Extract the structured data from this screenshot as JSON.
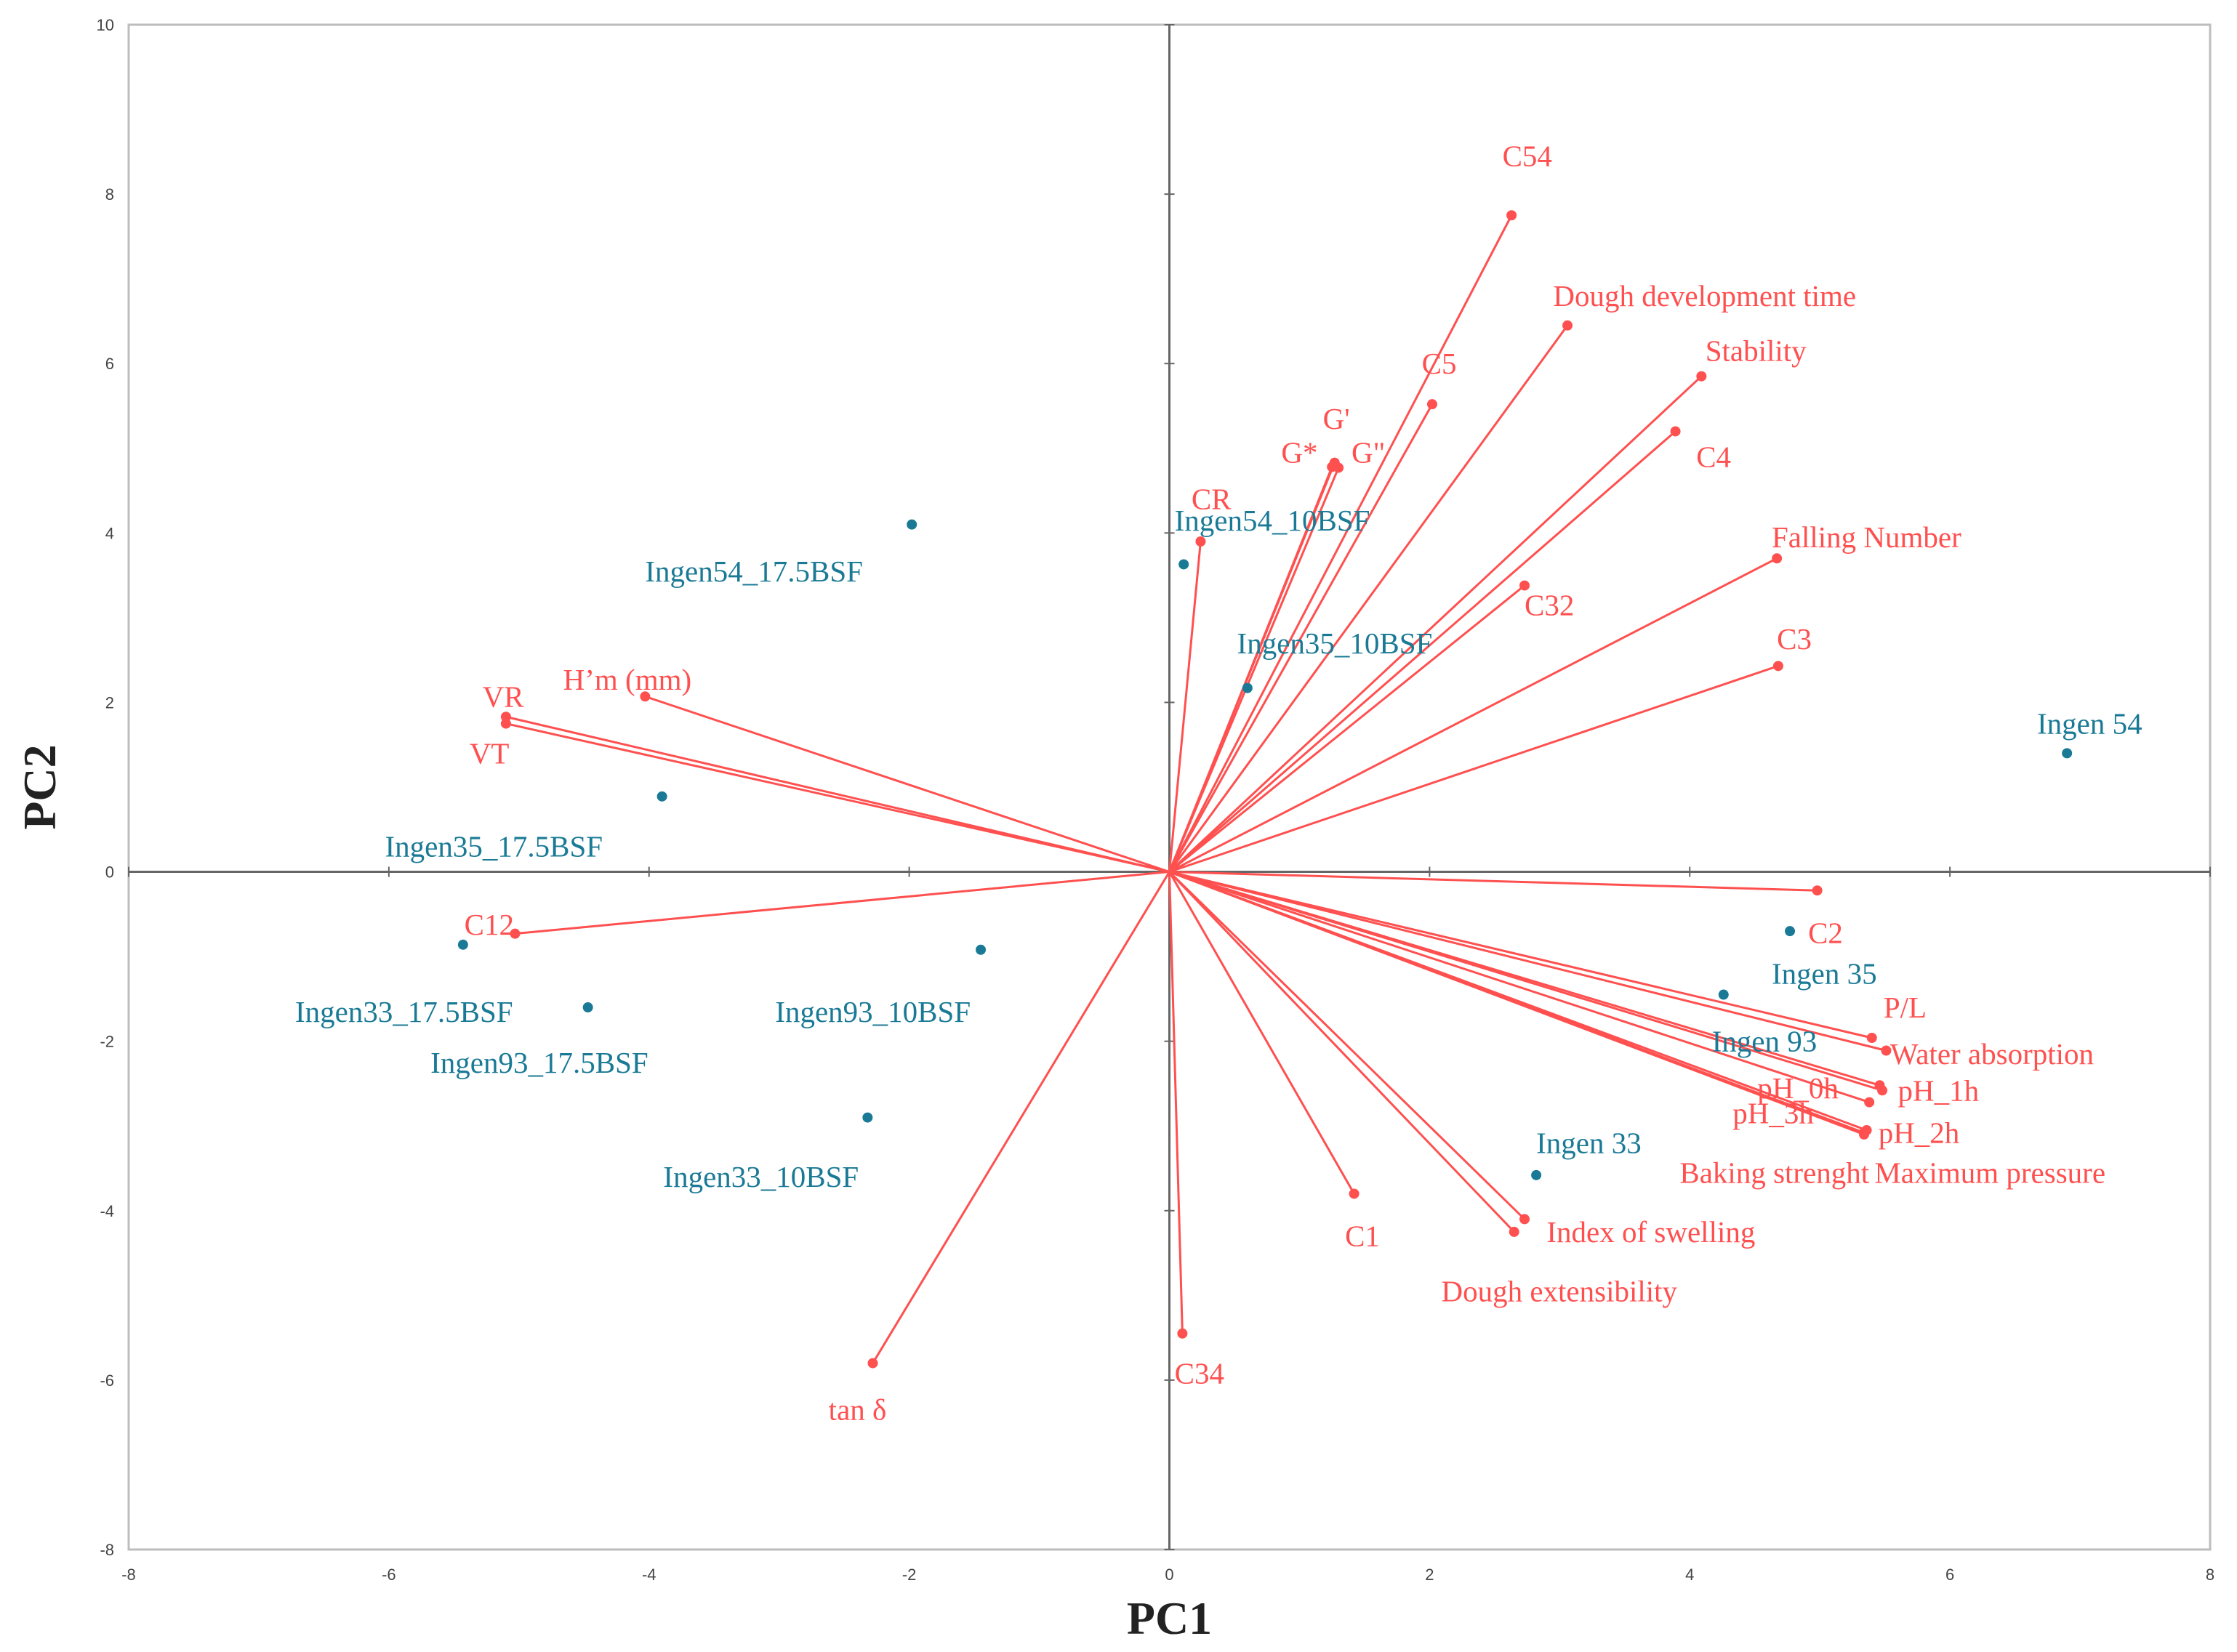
{
  "chart_data": {
    "type": "scatter",
    "subtype": "pca-biplot",
    "title": "",
    "xlabel": "PC1",
    "ylabel": "PC2",
    "xlim": [
      -8,
      8
    ],
    "ylim": [
      -8,
      10
    ],
    "xticks": [
      -8,
      -6,
      -4,
      -2,
      0,
      2,
      4,
      6,
      8
    ],
    "yticks": [
      -8,
      -6,
      -4,
      -2,
      0,
      2,
      4,
      6,
      8,
      10
    ],
    "grid": false,
    "colors": {
      "variables": "#ff5050",
      "observations": "#1a7a96",
      "frame": "#bdbdbd",
      "zero_lines": "#666666"
    },
    "variables": [
      {
        "label": "C54",
        "x": 2.63,
        "y": 7.75,
        "anchor": "start",
        "dx": 2.56,
        "dy": 8.45
      },
      {
        "label": "Dough development time",
        "x": 3.06,
        "y": 6.45,
        "anchor": "start",
        "dx": 2.95,
        "dy": 6.8
      },
      {
        "label": "Stability",
        "x": 4.09,
        "y": 5.85,
        "anchor": "start",
        "dx": 4.12,
        "dy": 6.15
      },
      {
        "label": "C5",
        "x": 2.02,
        "y": 5.52,
        "anchor": "start",
        "dx": 1.94,
        "dy": 6.0
      },
      {
        "label": "G'",
        "x": 1.27,
        "y": 4.83,
        "anchor": "start",
        "dx": 1.18,
        "dy": 5.35
      },
      {
        "label": "G*",
        "x": 1.25,
        "y": 4.78,
        "anchor": "start",
        "dx": 0.86,
        "dy": 4.95
      },
      {
        "label": "G\"",
        "x": 1.3,
        "y": 4.77,
        "anchor": "start",
        "dx": 1.4,
        "dy": 4.95
      },
      {
        "label": "C4",
        "x": 3.89,
        "y": 5.2,
        "anchor": "start",
        "dx": 4.05,
        "dy": 4.9
      },
      {
        "label": "CR",
        "x": 0.24,
        "y": 3.9,
        "anchor": "start",
        "dx": 0.17,
        "dy": 4.4
      },
      {
        "label": "Falling Number",
        "x": 4.67,
        "y": 3.7,
        "anchor": "start",
        "dx": 4.63,
        "dy": 3.95
      },
      {
        "label": "C32",
        "x": 2.73,
        "y": 3.38,
        "anchor": "start",
        "dx": 2.73,
        "dy": 3.15
      },
      {
        "label": "C3",
        "x": 4.68,
        "y": 2.43,
        "anchor": "start",
        "dx": 4.67,
        "dy": 2.75
      },
      {
        "label": "H’m (mm)",
        "x": -4.03,
        "y": 2.07,
        "anchor": "start",
        "dx": -4.66,
        "dy": 2.27
      },
      {
        "label": "VR",
        "x": -5.1,
        "y": 1.83,
        "anchor": "start",
        "dx": -5.28,
        "dy": 2.07
      },
      {
        "label": "VT",
        "x": -5.1,
        "y": 1.75,
        "anchor": "start",
        "dx": -5.38,
        "dy": 1.4
      },
      {
        "label": "C2",
        "x": 4.98,
        "y": -0.22,
        "anchor": "start",
        "dx": 4.91,
        "dy": -0.72
      },
      {
        "label": "C12",
        "x": -5.03,
        "y": -0.73,
        "anchor": "start",
        "dx": -5.42,
        "dy": -0.62
      },
      {
        "label": "P/L",
        "x": 5.4,
        "y": -1.96,
        "anchor": "start",
        "dx": 5.49,
        "dy": -1.6
      },
      {
        "label": "Water absorption",
        "x": 5.51,
        "y": -2.11,
        "anchor": "start",
        "dx": 5.54,
        "dy": -2.15
      },
      {
        "label": "pH_0h",
        "x": 5.46,
        "y": -2.52,
        "anchor": "start",
        "dx": 4.52,
        "dy": -2.55
      },
      {
        "label": "pH_1h",
        "x": 5.48,
        "y": -2.58,
        "anchor": "start",
        "dx": 5.6,
        "dy": -2.58
      },
      {
        "label": "pH_3h",
        "x": 5.38,
        "y": -2.72,
        "anchor": "start",
        "dx": 4.33,
        "dy": -2.85
      },
      {
        "label": "pH_2h",
        "x": 5.36,
        "y": -3.05,
        "anchor": "start",
        "dx": 5.45,
        "dy": -3.08
      },
      {
        "label": "Maximum pressure",
        "x": 5.34,
        "y": -3.08,
        "anchor": "start",
        "dx": 5.42,
        "dy": -3.55
      },
      {
        "label": "Baking strenght",
        "x": 5.34,
        "y": -3.1,
        "anchor": "end",
        "dx": 5.38,
        "dy": -3.55
      },
      {
        "label": "C1",
        "x": 1.42,
        "y": -3.8,
        "anchor": "start",
        "dx": 1.35,
        "dy": -4.3
      },
      {
        "label": "Index of swelling",
        "x": 2.73,
        "y": -4.1,
        "anchor": "start",
        "dx": 2.9,
        "dy": -4.25
      },
      {
        "label": "Dough extensibility",
        "x": 2.65,
        "y": -4.25,
        "anchor": "start",
        "dx": 2.09,
        "dy": -4.95
      },
      {
        "label": "C34",
        "x": 0.1,
        "y": -5.45,
        "anchor": "start",
        "dx": 0.04,
        "dy": -5.92
      },
      {
        "label": "tan δ",
        "x": -2.28,
        "y": -5.8,
        "anchor": "start",
        "dx": -2.62,
        "dy": -6.35
      }
    ],
    "observations": [
      {
        "label": "Ingen54_17.5BSF",
        "x": -1.98,
        "y": 4.1,
        "dx": -4.03,
        "dy": 3.55
      },
      {
        "label": "Ingen54_10BSF",
        "x": 0.11,
        "y": 3.63,
        "dx": 0.04,
        "dy": 4.15
      },
      {
        "label": "Ingen35_10BSF",
        "x": 0.6,
        "y": 2.17,
        "dx": 0.52,
        "dy": 2.7
      },
      {
        "label": "Ingen 54",
        "x": 6.9,
        "y": 1.4,
        "dx": 6.67,
        "dy": 1.75
      },
      {
        "label": "Ingen35_17.5BSF",
        "x": -3.9,
        "y": 0.89,
        "dx": -6.03,
        "dy": 0.3
      },
      {
        "label": "Ingen 35",
        "x": 4.77,
        "y": -0.7,
        "dx": 4.63,
        "dy": -1.2
      },
      {
        "label": "Ingen 93",
        "x": 4.26,
        "y": -1.45,
        "dx": 4.17,
        "dy": -2.0
      },
      {
        "label": "Ingen93_10BSF",
        "x": -1.45,
        "y": -0.92,
        "dx": -3.03,
        "dy": -1.65
      },
      {
        "label": "Ingen33_17.5BSF",
        "x": -5.43,
        "y": -0.86,
        "dx": -6.72,
        "dy": -1.65
      },
      {
        "label": "Ingen93_17.5BSF",
        "x": -4.47,
        "y": -1.6,
        "dx": -5.68,
        "dy": -2.25
      },
      {
        "label": "Ingen33_10BSF",
        "x": -2.32,
        "y": -2.9,
        "dx": -3.89,
        "dy": -3.6
      },
      {
        "label": "Ingen 33",
        "x": 2.82,
        "y": -3.58,
        "dx": 2.82,
        "dy": -3.2
      }
    ]
  }
}
